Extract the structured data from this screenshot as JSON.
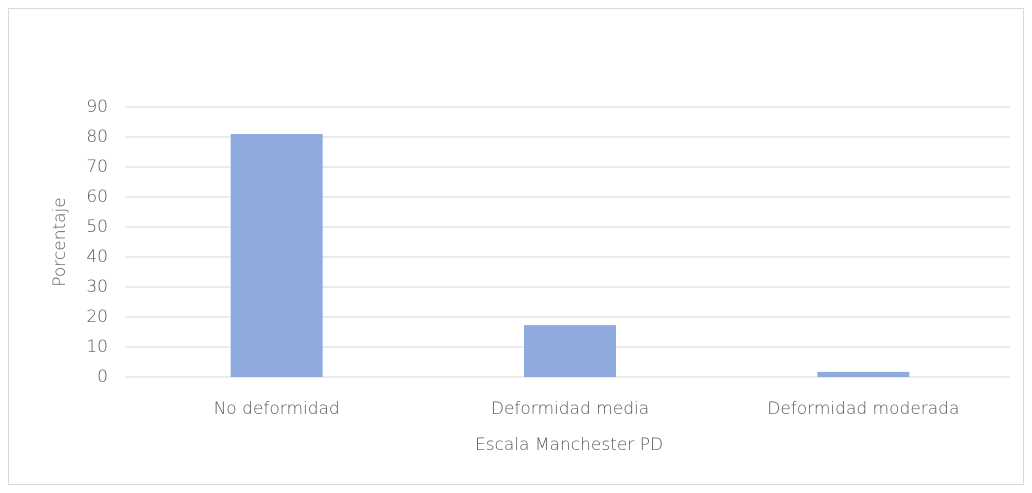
{
  "chart_data": {
    "type": "bar",
    "x_label": "Escala Manchester PD",
    "y_label": "Porcentaje",
    "categories": [
      "No deformidad",
      "Deformidad media",
      "Deformidad moderada"
    ],
    "values": [
      81,
      17.3,
      1.7
    ],
    "color": "#8faadc",
    "ylim": [
      0,
      90
    ],
    "yticks": [
      0,
      10,
      20,
      30,
      40,
      50,
      60,
      70,
      80,
      90
    ],
    "grid": true
  }
}
